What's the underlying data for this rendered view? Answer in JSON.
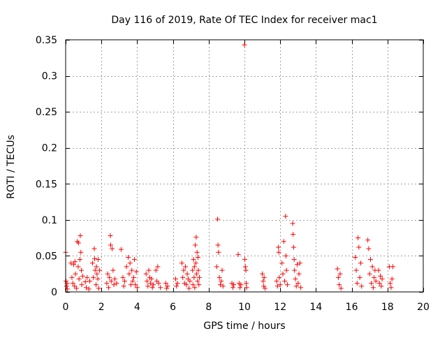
{
  "chart_data": {
    "type": "scatter",
    "title": "Day 116 of 2019, Rate Of TEC Index for receiver mac1",
    "xlabel": "GPS time / hours",
    "ylabel": "ROTI / TECUs",
    "xlim": [
      0,
      20
    ],
    "ylim": [
      0,
      0.35
    ],
    "x_ticks": [
      0,
      2,
      4,
      6,
      8,
      10,
      12,
      14,
      16,
      18,
      20
    ],
    "y_ticks": [
      0,
      0.05,
      0.1,
      0.15,
      0.2,
      0.25,
      0.3,
      0.35
    ],
    "x_tick_labels": [
      "0",
      "2",
      "4",
      "6",
      "8",
      "10",
      "12",
      "14",
      "16",
      "18",
      "20"
    ],
    "y_tick_labels": [
      "0",
      "0.05",
      "0.1",
      "0.15",
      "0.2",
      "0.25",
      "0.3",
      "0.35"
    ],
    "grid": true,
    "marker": "+",
    "color": "#ff0000",
    "series": [
      {
        "name": "ROTI",
        "points": [
          [
            0.0,
            0.055
          ],
          [
            0.02,
            0.015
          ],
          [
            0.05,
            0.008
          ],
          [
            0.08,
            0.012
          ],
          [
            0.1,
            0.004
          ],
          [
            0.3,
            0.04
          ],
          [
            0.35,
            0.02
          ],
          [
            0.4,
            0.012
          ],
          [
            0.45,
            0.038
          ],
          [
            0.5,
            0.008
          ],
          [
            0.52,
            0.042
          ],
          [
            0.55,
            0.025
          ],
          [
            0.6,
            0.005
          ],
          [
            0.65,
            0.07
          ],
          [
            0.7,
            0.035
          ],
          [
            0.72,
            0.068
          ],
          [
            0.75,
            0.018
          ],
          [
            0.8,
            0.045
          ],
          [
            0.82,
            0.078
          ],
          [
            0.85,
            0.055
          ],
          [
            0.88,
            0.03
          ],
          [
            0.9,
            0.01
          ],
          [
            0.95,
            0.022
          ],
          [
            1.1,
            0.014
          ],
          [
            1.15,
            0.006
          ],
          [
            1.2,
            0.02
          ],
          [
            1.3,
            0.004
          ],
          [
            1.35,
            0.015
          ],
          [
            1.5,
            0.04
          ],
          [
            1.55,
            0.02
          ],
          [
            1.6,
            0.06
          ],
          [
            1.62,
            0.046
          ],
          [
            1.65,
            0.03
          ],
          [
            1.7,
            0.01
          ],
          [
            1.72,
            0.035
          ],
          [
            1.75,
            0.025
          ],
          [
            1.8,
            0.018
          ],
          [
            1.82,
            0.045
          ],
          [
            1.85,
            0.005
          ],
          [
            1.9,
            0.03
          ],
          [
            2.3,
            0.012
          ],
          [
            2.35,
            0.025
          ],
          [
            2.4,
            0.006
          ],
          [
            2.45,
            0.02
          ],
          [
            2.5,
            0.078
          ],
          [
            2.52,
            0.065
          ],
          [
            2.55,
            0.015
          ],
          [
            2.6,
            0.06
          ],
          [
            2.65,
            0.03
          ],
          [
            2.7,
            0.01
          ],
          [
            2.75,
            0.018
          ],
          [
            2.85,
            0.012
          ],
          [
            3.1,
            0.059
          ],
          [
            3.2,
            0.02
          ],
          [
            3.25,
            0.008
          ],
          [
            3.3,
            0.015
          ],
          [
            3.4,
            0.035
          ],
          [
            3.5,
            0.048
          ],
          [
            3.55,
            0.025
          ],
          [
            3.6,
            0.04
          ],
          [
            3.65,
            0.01
          ],
          [
            3.7,
            0.03
          ],
          [
            3.75,
            0.015
          ],
          [
            3.8,
            0.02
          ],
          [
            3.85,
            0.045
          ],
          [
            3.9,
            0.01
          ],
          [
            3.95,
            0.028
          ],
          [
            4.0,
            0.006
          ],
          [
            4.5,
            0.025
          ],
          [
            4.55,
            0.015
          ],
          [
            4.6,
            0.008
          ],
          [
            4.65,
            0.03
          ],
          [
            4.7,
            0.02
          ],
          [
            4.75,
            0.012
          ],
          [
            4.8,
            0.018
          ],
          [
            4.85,
            0.006
          ],
          [
            4.9,
            0.01
          ],
          [
            5.05,
            0.03
          ],
          [
            5.1,
            0.015
          ],
          [
            5.15,
            0.035
          ],
          [
            5.2,
            0.012
          ],
          [
            5.3,
            0.006
          ],
          [
            5.6,
            0.012
          ],
          [
            5.65,
            0.005
          ],
          [
            5.7,
            0.008
          ],
          [
            6.15,
            0.018
          ],
          [
            6.2,
            0.008
          ],
          [
            6.25,
            0.012
          ],
          [
            6.5,
            0.04
          ],
          [
            6.55,
            0.02
          ],
          [
            6.6,
            0.03
          ],
          [
            6.65,
            0.012
          ],
          [
            6.7,
            0.035
          ],
          [
            6.75,
            0.01
          ],
          [
            6.8,
            0.025
          ],
          [
            6.85,
            0.018
          ],
          [
            6.9,
            0.005
          ],
          [
            6.95,
            0.015
          ],
          [
            7.1,
            0.03
          ],
          [
            7.12,
            0.01
          ],
          [
            7.15,
            0.045
          ],
          [
            7.18,
            0.02
          ],
          [
            7.2,
            0.035
          ],
          [
            7.22,
            0.006
          ],
          [
            7.25,
            0.065
          ],
          [
            7.28,
            0.04
          ],
          [
            7.3,
            0.076
          ],
          [
            7.32,
            0.025
          ],
          [
            7.35,
            0.055
          ],
          [
            7.38,
            0.015
          ],
          [
            7.4,
            0.048
          ],
          [
            7.42,
            0.03
          ],
          [
            7.45,
            0.01
          ],
          [
            7.48,
            0.02
          ],
          [
            8.45,
            0.035
          ],
          [
            8.5,
            0.101
          ],
          [
            8.52,
            0.065
          ],
          [
            8.55,
            0.055
          ],
          [
            8.6,
            0.02
          ],
          [
            8.65,
            0.01
          ],
          [
            8.7,
            0.015
          ],
          [
            8.75,
            0.03
          ],
          [
            8.8,
            0.008
          ],
          [
            9.3,
            0.012
          ],
          [
            9.35,
            0.006
          ],
          [
            9.4,
            0.01
          ],
          [
            9.65,
            0.052
          ],
          [
            9.7,
            0.012
          ],
          [
            9.75,
            0.006
          ],
          [
            9.8,
            0.01
          ],
          [
            10.0,
            0.343
          ],
          [
            10.02,
            0.045
          ],
          [
            10.05,
            0.035
          ],
          [
            10.08,
            0.03
          ],
          [
            10.1,
            0.012
          ],
          [
            10.12,
            0.006
          ],
          [
            11.0,
            0.025
          ],
          [
            11.05,
            0.015
          ],
          [
            11.08,
            0.008
          ],
          [
            11.1,
            0.02
          ],
          [
            11.15,
            0.005
          ],
          [
            11.8,
            0.015
          ],
          [
            11.85,
            0.008
          ],
          [
            11.9,
            0.062
          ],
          [
            11.92,
            0.055
          ],
          [
            11.95,
            0.02
          ],
          [
            12.0,
            0.01
          ],
          [
            12.1,
            0.04
          ],
          [
            12.15,
            0.025
          ],
          [
            12.2,
            0.07
          ],
          [
            12.25,
            0.015
          ],
          [
            12.3,
            0.105
          ],
          [
            12.32,
            0.05
          ],
          [
            12.35,
            0.03
          ],
          [
            12.4,
            0.01
          ],
          [
            12.7,
            0.095
          ],
          [
            12.72,
            0.08
          ],
          [
            12.75,
            0.062
          ],
          [
            12.78,
            0.045
          ],
          [
            12.8,
            0.03
          ],
          [
            12.85,
            0.018
          ],
          [
            12.9,
            0.008
          ],
          [
            12.95,
            0.038
          ],
          [
            13.0,
            0.012
          ],
          [
            13.05,
            0.025
          ],
          [
            13.1,
            0.04
          ],
          [
            13.15,
            0.006
          ],
          [
            15.2,
            0.032
          ],
          [
            15.25,
            0.02
          ],
          [
            15.3,
            0.01
          ],
          [
            15.35,
            0.025
          ],
          [
            15.4,
            0.005
          ],
          [
            16.2,
            0.048
          ],
          [
            16.25,
            0.03
          ],
          [
            16.3,
            0.012
          ],
          [
            16.35,
            0.075
          ],
          [
            16.4,
            0.062
          ],
          [
            16.45,
            0.02
          ],
          [
            16.5,
            0.04
          ],
          [
            16.55,
            0.008
          ],
          [
            16.9,
            0.072
          ],
          [
            16.95,
            0.06
          ],
          [
            17.0,
            0.025
          ],
          [
            17.05,
            0.045
          ],
          [
            17.1,
            0.012
          ],
          [
            17.15,
            0.035
          ],
          [
            17.2,
            0.006
          ],
          [
            17.25,
            0.02
          ],
          [
            17.3,
            0.03
          ],
          [
            17.35,
            0.015
          ],
          [
            17.5,
            0.03
          ],
          [
            17.55,
            0.012
          ],
          [
            17.6,
            0.022
          ],
          [
            17.65,
            0.008
          ],
          [
            17.7,
            0.018
          ],
          [
            18.1,
            0.035
          ],
          [
            18.15,
            0.012
          ],
          [
            18.2,
            0.006
          ],
          [
            18.25,
            0.018
          ],
          [
            18.3,
            0.035
          ]
        ]
      }
    ]
  }
}
